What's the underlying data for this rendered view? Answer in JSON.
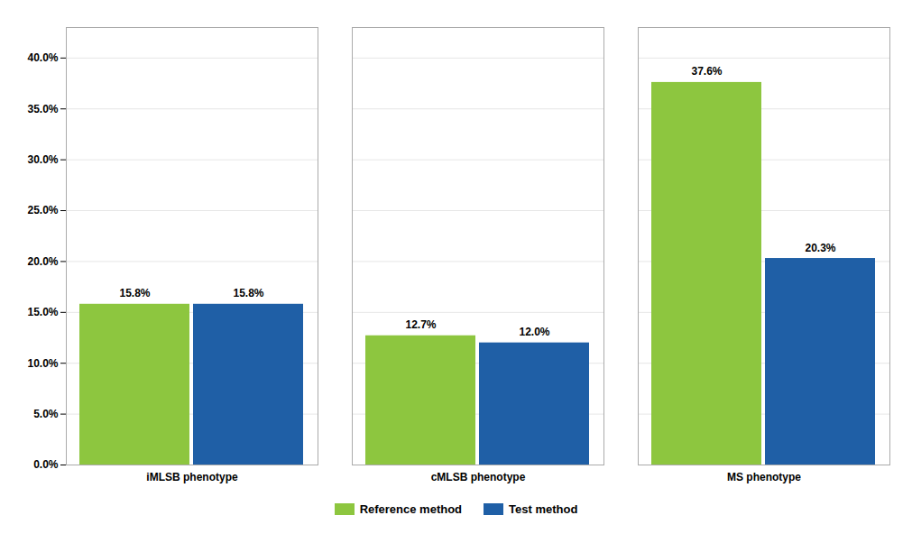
{
  "chart_data": {
    "type": "bar",
    "categories": [
      "iMLSB phenotype",
      "cMLSB phenotype",
      "MS phenotype"
    ],
    "series": [
      {
        "name": "Reference method",
        "color": "#8DC63F",
        "values": [
          15.8,
          12.7,
          37.6
        ],
        "value_labels": [
          "15.8%",
          "12.7%",
          "37.6%"
        ]
      },
      {
        "name": "Test method",
        "color": "#1F5FA6",
        "values": [
          15.8,
          12.0,
          20.3
        ],
        "value_labels": [
          "15.8%",
          "12.0%",
          "20.3%"
        ]
      }
    ],
    "ylim": [
      0,
      43
    ],
    "yticks": [
      {
        "value": 0.0,
        "label": "0.0%"
      },
      {
        "value": 5.0,
        "label": "5.0%"
      },
      {
        "value": 10.0,
        "label": "10.0%"
      },
      {
        "value": 15.0,
        "label": "15.0%"
      },
      {
        "value": 20.0,
        "label": "20.0%"
      },
      {
        "value": 25.0,
        "label": "25.0%"
      },
      {
        "value": 30.0,
        "label": "30.0%"
      },
      {
        "value": 35.0,
        "label": "35.0%"
      },
      {
        "value": 40.0,
        "label": "40.0%"
      }
    ],
    "grid": true,
    "legend": "bottom",
    "data_labels": true
  }
}
